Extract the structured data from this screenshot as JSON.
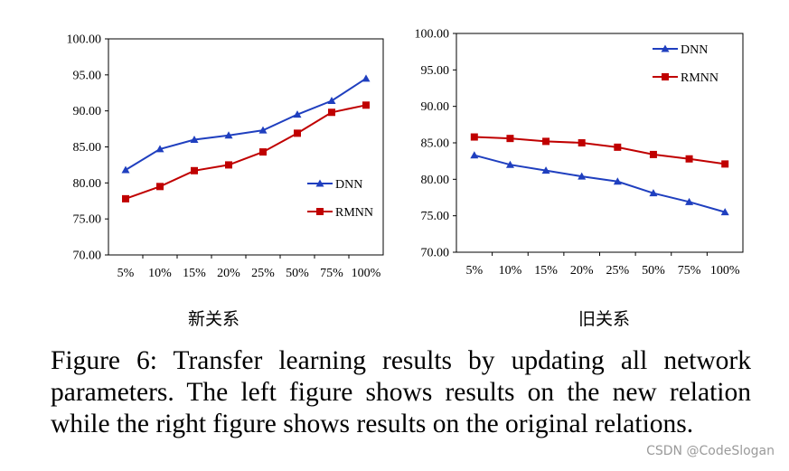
{
  "chart_data": [
    {
      "type": "line",
      "categories": [
        "5%",
        "10%",
        "15%",
        "20%",
        "25%",
        "50%",
        "75%",
        "100%"
      ],
      "ylim": [
        70,
        100
      ],
      "yticks": [
        "70.00",
        "75.00",
        "80.00",
        "85.00",
        "90.00",
        "95.00",
        "100.00"
      ],
      "grid": false,
      "legend_position": "right-middle",
      "series": [
        {
          "name": "DNN",
          "color": "#1f3fbf",
          "marker": "triangle",
          "values": [
            81.8,
            84.7,
            86.0,
            86.6,
            87.3,
            89.5,
            91.4,
            94.5
          ]
        },
        {
          "name": "RMNN",
          "color": "#c00000",
          "marker": "square",
          "values": [
            77.8,
            79.5,
            81.7,
            82.5,
            84.3,
            86.9,
            89.8,
            90.8
          ]
        }
      ]
    },
    {
      "type": "line",
      "categories": [
        "5%",
        "10%",
        "15%",
        "20%",
        "25%",
        "50%",
        "75%",
        "100%"
      ],
      "ylim": [
        70,
        100
      ],
      "yticks": [
        "70.00",
        "75.00",
        "80.00",
        "85.00",
        "90.00",
        "95.00",
        "100.00"
      ],
      "grid": false,
      "legend_position": "top-right",
      "series": [
        {
          "name": "DNN",
          "color": "#1f3fbf",
          "marker": "triangle",
          "values": [
            83.3,
            82.0,
            81.2,
            80.4,
            79.7,
            78.1,
            76.9,
            75.5
          ]
        },
        {
          "name": "RMNN",
          "color": "#c00000",
          "marker": "square",
          "values": [
            85.8,
            85.6,
            85.2,
            85.0,
            84.4,
            83.4,
            82.8,
            82.1
          ]
        }
      ]
    }
  ],
  "sublabels": {
    "left": "新关系",
    "right": "旧关系"
  },
  "caption": "Figure 6: Transfer learning results by updating all network parameters. The left figure shows results on the new relation while the right figure shows results on the original relations.",
  "watermark": "CSDN @CodeSlogan"
}
